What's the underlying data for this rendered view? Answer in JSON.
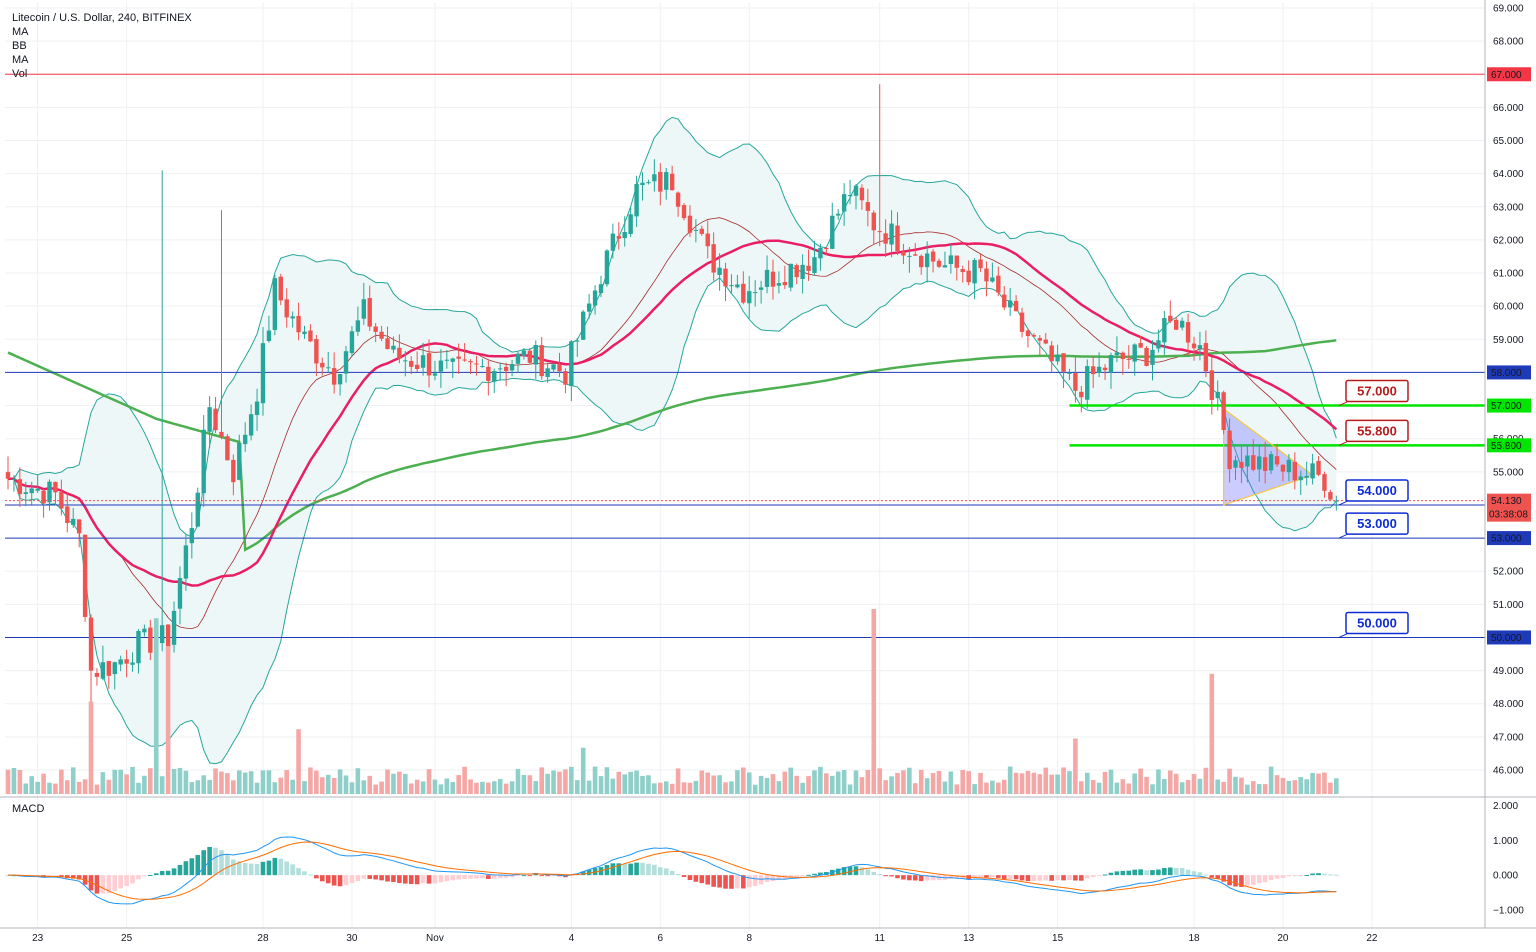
{
  "legend": {
    "symbol": "Litecoin / U.S. Dollar, 240, BITFINEX",
    "indicators": [
      "MA",
      "BB",
      "MA",
      "Vol"
    ]
  },
  "macd_label": "MACD",
  "colors": {
    "up": "#26a69a",
    "down": "#ef5350",
    "vol_up": "#8fcfc9",
    "vol_down": "#f4a7a5",
    "ma_fast": "#e91e63",
    "ma_slow": "#4caf50",
    "bb": "#26a69a",
    "bb_fill": "#eef7f7",
    "hline_red": "#f23645",
    "hline_blue": "#1e3ab8",
    "hline_green": "#00e600",
    "macd_line": "#2196f3",
    "signal_line": "#ff6d00"
  },
  "chart_data": {
    "type": "candlestick",
    "title": "Litecoin / U.S. Dollar, 240, BITFINEX",
    "ylim": [
      45.3,
      69.2
    ],
    "y_ticks": [
      "69.000",
      "68.000",
      "67.000",
      "66.000",
      "65.000",
      "64.000",
      "63.000",
      "62.000",
      "61.000",
      "60.000",
      "59.000",
      "58.000",
      "57.000",
      "56.000",
      "55.000",
      "54.000",
      "53.000",
      "52.000",
      "51.000",
      "50.000",
      "49.000",
      "48.000",
      "47.000",
      "46.000"
    ],
    "x_ticks": [
      "23",
      "25",
      "28",
      "30",
      "Nov",
      "4",
      "6",
      "8",
      "11",
      "13",
      "15",
      "18",
      "20",
      "22"
    ],
    "last_price": "54.130",
    "countdown": "03:38:08",
    "price_levels": [
      {
        "value": 67.0,
        "label": "67.000",
        "color": "red"
      },
      {
        "value": 58.0,
        "label": "58.000",
        "color": "blue"
      },
      {
        "value": 57.0,
        "label": "57.000",
        "color": "green"
      },
      {
        "value": 55.8,
        "label": "55.800",
        "color": "green"
      },
      {
        "value": 54.0,
        "label": "54.000",
        "color": "blue"
      },
      {
        "value": 53.0,
        "label": "53.000",
        "color": "blue"
      },
      {
        "value": 50.0,
        "label": "50.000",
        "color": "blue"
      }
    ],
    "callouts": [
      {
        "value": 57.0,
        "label": "57.000",
        "color": "red"
      },
      {
        "value": 55.8,
        "label": "55.800",
        "color": "red"
      },
      {
        "value": 54.0,
        "label": "54.000",
        "color": "blue"
      },
      {
        "value": 53.0,
        "label": "53.000",
        "color": "blue"
      },
      {
        "value": 50.0,
        "label": "50.000",
        "color": "blue"
      }
    ],
    "anchors": [
      {
        "c": 0,
        "p": 54.8
      },
      {
        "c": 8,
        "p": 54.3
      },
      {
        "c": 12,
        "p": 53.0
      },
      {
        "c": 14,
        "p": 49.0
      },
      {
        "c": 18,
        "p": 49.2
      },
      {
        "c": 22,
        "p": 49.8
      },
      {
        "c": 27,
        "p": 50.0
      },
      {
        "c": 31,
        "p": 53.5
      },
      {
        "c": 34,
        "p": 57.0
      },
      {
        "c": 38,
        "p": 55.0
      },
      {
        "c": 42,
        "p": 57.5
      },
      {
        "c": 45,
        "p": 60.5
      },
      {
        "c": 50,
        "p": 59.0
      },
      {
        "c": 55,
        "p": 58.0
      },
      {
        "c": 60,
        "p": 59.8
      },
      {
        "c": 65,
        "p": 58.5
      },
      {
        "c": 70,
        "p": 58.3
      },
      {
        "c": 75,
        "p": 58.0
      },
      {
        "c": 82,
        "p": 58.2
      },
      {
        "c": 88,
        "p": 58.5
      },
      {
        "c": 94,
        "p": 58.0
      },
      {
        "c": 100,
        "p": 61.0
      },
      {
        "c": 106,
        "p": 63.5
      },
      {
        "c": 112,
        "p": 63.8
      },
      {
        "c": 118,
        "p": 61.5
      },
      {
        "c": 124,
        "p": 60.5
      },
      {
        "c": 130,
        "p": 61.0
      },
      {
        "c": 136,
        "p": 61.5
      },
      {
        "c": 142,
        "p": 63.5
      },
      {
        "c": 146,
        "p": 62.5
      },
      {
        "c": 152,
        "p": 61.8
      },
      {
        "c": 158,
        "p": 61.2
      },
      {
        "c": 164,
        "p": 61.0
      },
      {
        "c": 170,
        "p": 59.5
      },
      {
        "c": 175,
        "p": 58.5
      },
      {
        "c": 180,
        "p": 57.5
      },
      {
        "c": 186,
        "p": 58.3
      },
      {
        "c": 192,
        "p": 58.6
      },
      {
        "c": 197,
        "p": 59.6
      },
      {
        "c": 201,
        "p": 58.8
      },
      {
        "c": 204,
        "p": 57.0
      },
      {
        "c": 206,
        "p": 55.5
      },
      {
        "c": 212,
        "p": 55.2
      },
      {
        "c": 218,
        "p": 55.0
      },
      {
        "c": 222,
        "p": 54.8
      },
      {
        "c": 224,
        "p": 54.13
      }
    ],
    "spikes": [
      {
        "c": 26,
        "high": 64.1
      },
      {
        "c": 147,
        "high": 66.7
      },
      {
        "c": 14,
        "low": 47.2
      },
      {
        "c": 36,
        "high": 62.9
      }
    ],
    "volume_spikes": [
      {
        "c": 14,
        "v": 0.5
      },
      {
        "c": 25,
        "v": 0.95
      },
      {
        "c": 27,
        "v": 0.8
      },
      {
        "c": 146,
        "v": 1.0
      },
      {
        "c": 203,
        "v": 0.65
      },
      {
        "c": 180,
        "v": 0.3
      },
      {
        "c": 49,
        "v": 0.35
      },
      {
        "c": 97,
        "v": 0.25
      }
    ],
    "macd_ticks": [
      "2.000",
      "1.000",
      "0.000",
      "−1.000"
    ],
    "macd_ylim": [
      -1.35,
      2.05
    ]
  }
}
